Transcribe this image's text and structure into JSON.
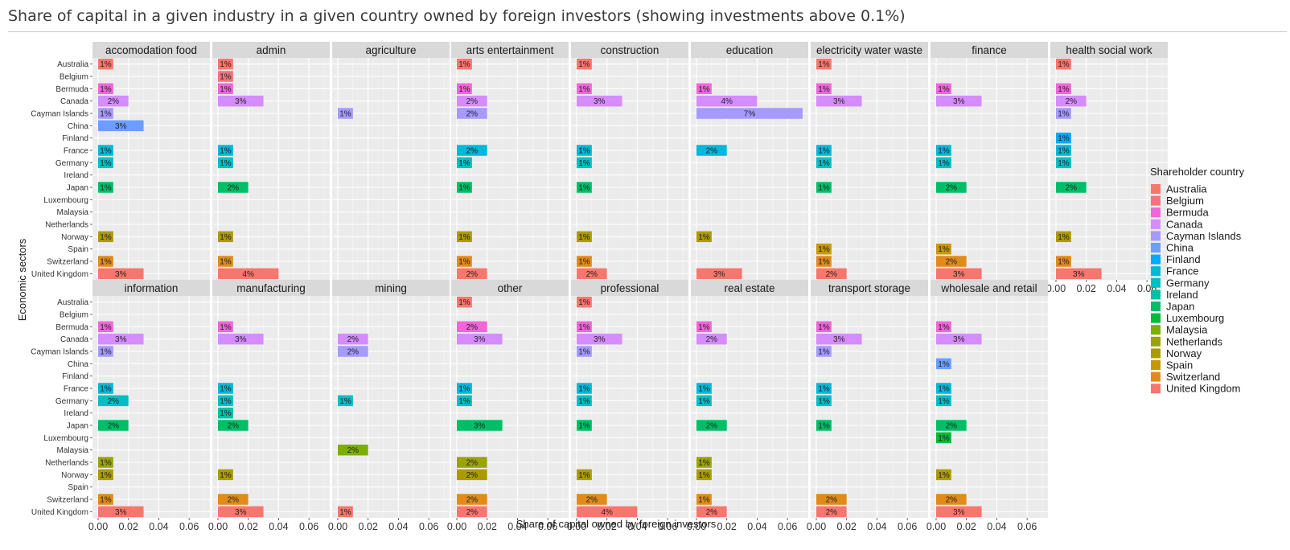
{
  "page": {
    "title": "Share of capital in a given industry in a given country owned by foreign investors (showing investments above 0.1%)"
  },
  "colors": {
    "Australia": "#F8766D",
    "Belgium": "#F3727F",
    "Bermuda": "#F066D8",
    "Canada": "#D58CFF",
    "Cayman Islands": "#A69AFF",
    "China": "#6A9FFF",
    "Finland": "#00A9FF",
    "France": "#00B8D9",
    "Germany": "#00BFC4",
    "Ireland": "#00C1A5",
    "Japan": "#00BE67",
    "Luxembourg": "#00BA38",
    "Malaysia": "#7CAE00",
    "Netherlands": "#9AA30A",
    "Norway": "#AC9B00",
    "Spain": "#C79800",
    "Switzerland": "#E08B1C",
    "United Kingdom": "#F8766D"
  },
  "chart_data": {
    "type": "bar",
    "orientation": "horizontal",
    "facet_by": "Economic sector",
    "xlabel": "Share of capital owned by foreign investors",
    "ylabel": "Economic sectors",
    "xlim": [
      0,
      0.07
    ],
    "xticks": [
      "0.00",
      "0.02",
      "0.04",
      "0.06"
    ],
    "countries": [
      "Australia",
      "Belgium",
      "Bermuda",
      "Canada",
      "Cayman Islands",
      "China",
      "Finland",
      "France",
      "Germany",
      "Ireland",
      "Japan",
      "Luxembourg",
      "Malaysia",
      "Netherlands",
      "Norway",
      "Spain",
      "Switzerland",
      "United Kingdom"
    ],
    "legend": {
      "title": "Shareholder country",
      "position": "right"
    },
    "grid": true,
    "panels": [
      {
        "sector": "accomodation food",
        "bars": [
          {
            "country": "Australia",
            "value": 0.01,
            "label": "1%"
          },
          {
            "country": "Bermuda",
            "value": 0.01,
            "label": "1%"
          },
          {
            "country": "Canada",
            "value": 0.02,
            "label": "2%"
          },
          {
            "country": "Cayman Islands",
            "value": 0.01,
            "label": "1%"
          },
          {
            "country": "China",
            "value": 0.03,
            "label": "3%"
          },
          {
            "country": "France",
            "value": 0.01,
            "label": "1%"
          },
          {
            "country": "Germany",
            "value": 0.01,
            "label": "1%"
          },
          {
            "country": "Japan",
            "value": 0.01,
            "label": "1%"
          },
          {
            "country": "Norway",
            "value": 0.01,
            "label": "1%"
          },
          {
            "country": "Switzerland",
            "value": 0.01,
            "label": "1%"
          },
          {
            "country": "United Kingdom",
            "value": 0.03,
            "label": "3%"
          }
        ]
      },
      {
        "sector": "admin",
        "bars": [
          {
            "country": "Australia",
            "value": 0.01,
            "label": "1%"
          },
          {
            "country": "Belgium",
            "value": 0.01,
            "label": "1%"
          },
          {
            "country": "Bermuda",
            "value": 0.01,
            "label": "1%"
          },
          {
            "country": "Canada",
            "value": 0.03,
            "label": "3%"
          },
          {
            "country": "France",
            "value": 0.01,
            "label": "1%"
          },
          {
            "country": "Germany",
            "value": 0.01,
            "label": "1%"
          },
          {
            "country": "Japan",
            "value": 0.02,
            "label": "2%"
          },
          {
            "country": "Norway",
            "value": 0.01,
            "label": "1%"
          },
          {
            "country": "Switzerland",
            "value": 0.01,
            "label": "1%"
          },
          {
            "country": "United Kingdom",
            "value": 0.04,
            "label": "4%"
          }
        ]
      },
      {
        "sector": "agriculture",
        "bars": [
          {
            "country": "Cayman Islands",
            "value": 0.01,
            "label": "1%"
          }
        ]
      },
      {
        "sector": "arts entertainment",
        "bars": [
          {
            "country": "Australia",
            "value": 0.01,
            "label": "1%"
          },
          {
            "country": "Bermuda",
            "value": 0.01,
            "label": "1%"
          },
          {
            "country": "Canada",
            "value": 0.02,
            "label": "2%"
          },
          {
            "country": "Cayman Islands",
            "value": 0.02,
            "label": "2%"
          },
          {
            "country": "France",
            "value": 0.02,
            "label": "2%"
          },
          {
            "country": "Germany",
            "value": 0.01,
            "label": "1%"
          },
          {
            "country": "Japan",
            "value": 0.01,
            "label": "1%"
          },
          {
            "country": "Norway",
            "value": 0.01,
            "label": "1%"
          },
          {
            "country": "Switzerland",
            "value": 0.01,
            "label": "1%"
          },
          {
            "country": "United Kingdom",
            "value": 0.02,
            "label": "2%"
          }
        ]
      },
      {
        "sector": "construction",
        "bars": [
          {
            "country": "Australia",
            "value": 0.01,
            "label": "1%"
          },
          {
            "country": "Bermuda",
            "value": 0.01,
            "label": "1%"
          },
          {
            "country": "Canada",
            "value": 0.03,
            "label": "3%"
          },
          {
            "country": "France",
            "value": 0.01,
            "label": "1%"
          },
          {
            "country": "Germany",
            "value": 0.01,
            "label": "1%"
          },
          {
            "country": "Japan",
            "value": 0.01,
            "label": "1%"
          },
          {
            "country": "Norway",
            "value": 0.01,
            "label": "1%"
          },
          {
            "country": "Switzerland",
            "value": 0.01,
            "label": "1%"
          },
          {
            "country": "United Kingdom",
            "value": 0.02,
            "label": "2%"
          }
        ]
      },
      {
        "sector": "education",
        "bars": [
          {
            "country": "Bermuda",
            "value": 0.01,
            "label": "1%"
          },
          {
            "country": "Canada",
            "value": 0.04,
            "label": "4%"
          },
          {
            "country": "Cayman Islands",
            "value": 0.07,
            "label": "7%"
          },
          {
            "country": "France",
            "value": 0.02,
            "label": "2%"
          },
          {
            "country": "Norway",
            "value": 0.01,
            "label": "1%"
          },
          {
            "country": "United Kingdom",
            "value": 0.03,
            "label": "3%"
          }
        ]
      },
      {
        "sector": "electricity water waste",
        "bars": [
          {
            "country": "Australia",
            "value": 0.01,
            "label": "1%"
          },
          {
            "country": "Bermuda",
            "value": 0.01,
            "label": "1%"
          },
          {
            "country": "Canada",
            "value": 0.03,
            "label": "3%"
          },
          {
            "country": "France",
            "value": 0.01,
            "label": "1%"
          },
          {
            "country": "Germany",
            "value": 0.01,
            "label": "1%"
          },
          {
            "country": "Japan",
            "value": 0.01,
            "label": "1%"
          },
          {
            "country": "Spain",
            "value": 0.01,
            "label": "1%"
          },
          {
            "country": "Switzerland",
            "value": 0.01,
            "label": "1%"
          },
          {
            "country": "United Kingdom",
            "value": 0.02,
            "label": "2%"
          }
        ]
      },
      {
        "sector": "finance",
        "bars": [
          {
            "country": "Bermuda",
            "value": 0.01,
            "label": "1%"
          },
          {
            "country": "Canada",
            "value": 0.03,
            "label": "3%"
          },
          {
            "country": "France",
            "value": 0.01,
            "label": "1%"
          },
          {
            "country": "Germany",
            "value": 0.01,
            "label": "1%"
          },
          {
            "country": "Japan",
            "value": 0.02,
            "label": "2%"
          },
          {
            "country": "Spain",
            "value": 0.01,
            "label": "1%"
          },
          {
            "country": "Switzerland",
            "value": 0.02,
            "label": "2%"
          },
          {
            "country": "United Kingdom",
            "value": 0.03,
            "label": "3%"
          }
        ]
      },
      {
        "sector": "health social work",
        "bars": [
          {
            "country": "Australia",
            "value": 0.01,
            "label": "1%"
          },
          {
            "country": "Bermuda",
            "value": 0.01,
            "label": "1%"
          },
          {
            "country": "Canada",
            "value": 0.02,
            "label": "2%"
          },
          {
            "country": "Cayman Islands",
            "value": 0.01,
            "label": "1%"
          },
          {
            "country": "Finland",
            "value": 0.01,
            "label": "1%"
          },
          {
            "country": "France",
            "value": 0.01,
            "label": "1%"
          },
          {
            "country": "Germany",
            "value": 0.01,
            "label": "1%"
          },
          {
            "country": "Japan",
            "value": 0.02,
            "label": "2%"
          },
          {
            "country": "Norway",
            "value": 0.01,
            "label": "1%"
          },
          {
            "country": "Switzerland",
            "value": 0.01,
            "label": "1%"
          },
          {
            "country": "United Kingdom",
            "value": 0.03,
            "label": "3%"
          }
        ]
      },
      {
        "sector": "information",
        "bars": [
          {
            "country": "Bermuda",
            "value": 0.01,
            "label": "1%"
          },
          {
            "country": "Canada",
            "value": 0.03,
            "label": "3%"
          },
          {
            "country": "Cayman Islands",
            "value": 0.01,
            "label": "1%"
          },
          {
            "country": "France",
            "value": 0.01,
            "label": "1%"
          },
          {
            "country": "Germany",
            "value": 0.02,
            "label": "2%"
          },
          {
            "country": "Japan",
            "value": 0.02,
            "label": "2%"
          },
          {
            "country": "Netherlands",
            "value": 0.01,
            "label": "1%"
          },
          {
            "country": "Norway",
            "value": 0.01,
            "label": "1%"
          },
          {
            "country": "Switzerland",
            "value": 0.01,
            "label": "1%"
          },
          {
            "country": "United Kingdom",
            "value": 0.03,
            "label": "3%"
          }
        ]
      },
      {
        "sector": "manufacturing",
        "bars": [
          {
            "country": "Bermuda",
            "value": 0.01,
            "label": "1%"
          },
          {
            "country": "Canada",
            "value": 0.03,
            "label": "3%"
          },
          {
            "country": "France",
            "value": 0.01,
            "label": "1%"
          },
          {
            "country": "Germany",
            "value": 0.01,
            "label": "1%"
          },
          {
            "country": "Ireland",
            "value": 0.01,
            "label": "1%"
          },
          {
            "country": "Japan",
            "value": 0.02,
            "label": "2%"
          },
          {
            "country": "Norway",
            "value": 0.01,
            "label": "1%"
          },
          {
            "country": "Switzerland",
            "value": 0.02,
            "label": "2%"
          },
          {
            "country": "United Kingdom",
            "value": 0.03,
            "label": "3%"
          }
        ]
      },
      {
        "sector": "mining",
        "bars": [
          {
            "country": "Canada",
            "value": 0.02,
            "label": "2%"
          },
          {
            "country": "Cayman Islands",
            "value": 0.02,
            "label": "2%"
          },
          {
            "country": "Germany",
            "value": 0.01,
            "label": "1%"
          },
          {
            "country": "Malaysia",
            "value": 0.02,
            "label": "2%"
          },
          {
            "country": "United Kingdom",
            "value": 0.01,
            "label": "1%"
          }
        ]
      },
      {
        "sector": "other",
        "bars": [
          {
            "country": "Australia",
            "value": 0.01,
            "label": "1%"
          },
          {
            "country": "Bermuda",
            "value": 0.02,
            "label": "2%"
          },
          {
            "country": "Canada",
            "value": 0.03,
            "label": "3%"
          },
          {
            "country": "France",
            "value": 0.01,
            "label": "1%"
          },
          {
            "country": "Germany",
            "value": 0.01,
            "label": "1%"
          },
          {
            "country": "Japan",
            "value": 0.03,
            "label": "3%"
          },
          {
            "country": "Netherlands",
            "value": 0.02,
            "label": "2%"
          },
          {
            "country": "Norway",
            "value": 0.02,
            "label": "2%"
          },
          {
            "country": "Switzerland",
            "value": 0.02,
            "label": "2%"
          },
          {
            "country": "United Kingdom",
            "value": 0.02,
            "label": "2%"
          }
        ]
      },
      {
        "sector": "professional",
        "bars": [
          {
            "country": "Australia",
            "value": 0.01,
            "label": "1%"
          },
          {
            "country": "Bermuda",
            "value": 0.01,
            "label": "1%"
          },
          {
            "country": "Canada",
            "value": 0.03,
            "label": "3%"
          },
          {
            "country": "Cayman Islands",
            "value": 0.01,
            "label": "1%"
          },
          {
            "country": "France",
            "value": 0.01,
            "label": "1%"
          },
          {
            "country": "Germany",
            "value": 0.01,
            "label": "1%"
          },
          {
            "country": "Japan",
            "value": 0.01,
            "label": "1%"
          },
          {
            "country": "Norway",
            "value": 0.01,
            "label": "1%"
          },
          {
            "country": "Switzerland",
            "value": 0.02,
            "label": "2%"
          },
          {
            "country": "United Kingdom",
            "value": 0.04,
            "label": "4%"
          }
        ]
      },
      {
        "sector": "real estate",
        "bars": [
          {
            "country": "Bermuda",
            "value": 0.01,
            "label": "1%"
          },
          {
            "country": "Canada",
            "value": 0.02,
            "label": "2%"
          },
          {
            "country": "France",
            "value": 0.01,
            "label": "1%"
          },
          {
            "country": "Germany",
            "value": 0.01,
            "label": "1%"
          },
          {
            "country": "Japan",
            "value": 0.02,
            "label": "2%"
          },
          {
            "country": "Netherlands",
            "value": 0.01,
            "label": "1%"
          },
          {
            "country": "Norway",
            "value": 0.01,
            "label": "1%"
          },
          {
            "country": "Switzerland",
            "value": 0.01,
            "label": "1%"
          },
          {
            "country": "United Kingdom",
            "value": 0.02,
            "label": "2%"
          }
        ]
      },
      {
        "sector": "transport storage",
        "bars": [
          {
            "country": "Bermuda",
            "value": 0.01,
            "label": "1%"
          },
          {
            "country": "Canada",
            "value": 0.03,
            "label": "3%"
          },
          {
            "country": "Cayman Islands",
            "value": 0.01,
            "label": "1%"
          },
          {
            "country": "France",
            "value": 0.01,
            "label": "1%"
          },
          {
            "country": "Germany",
            "value": 0.01,
            "label": "1%"
          },
          {
            "country": "Japan",
            "value": 0.01,
            "label": "1%"
          },
          {
            "country": "Switzerland",
            "value": 0.02,
            "label": "2%"
          },
          {
            "country": "United Kingdom",
            "value": 0.02,
            "label": "2%"
          }
        ]
      },
      {
        "sector": "wholesale and retail",
        "bars": [
          {
            "country": "Bermuda",
            "value": 0.01,
            "label": "1%"
          },
          {
            "country": "Canada",
            "value": 0.03,
            "label": "3%"
          },
          {
            "country": "China",
            "value": 0.01,
            "label": "1%"
          },
          {
            "country": "France",
            "value": 0.01,
            "label": "1%"
          },
          {
            "country": "Germany",
            "value": 0.01,
            "label": "1%"
          },
          {
            "country": "Japan",
            "value": 0.02,
            "label": "2%"
          },
          {
            "country": "Luxembourg",
            "value": 0.01,
            "label": "1%"
          },
          {
            "country": "Norway",
            "value": 0.01,
            "label": "1%"
          },
          {
            "country": "Switzerland",
            "value": 0.02,
            "label": "2%"
          },
          {
            "country": "United Kingdom",
            "value": 0.03,
            "label": "3%"
          }
        ]
      }
    ]
  }
}
